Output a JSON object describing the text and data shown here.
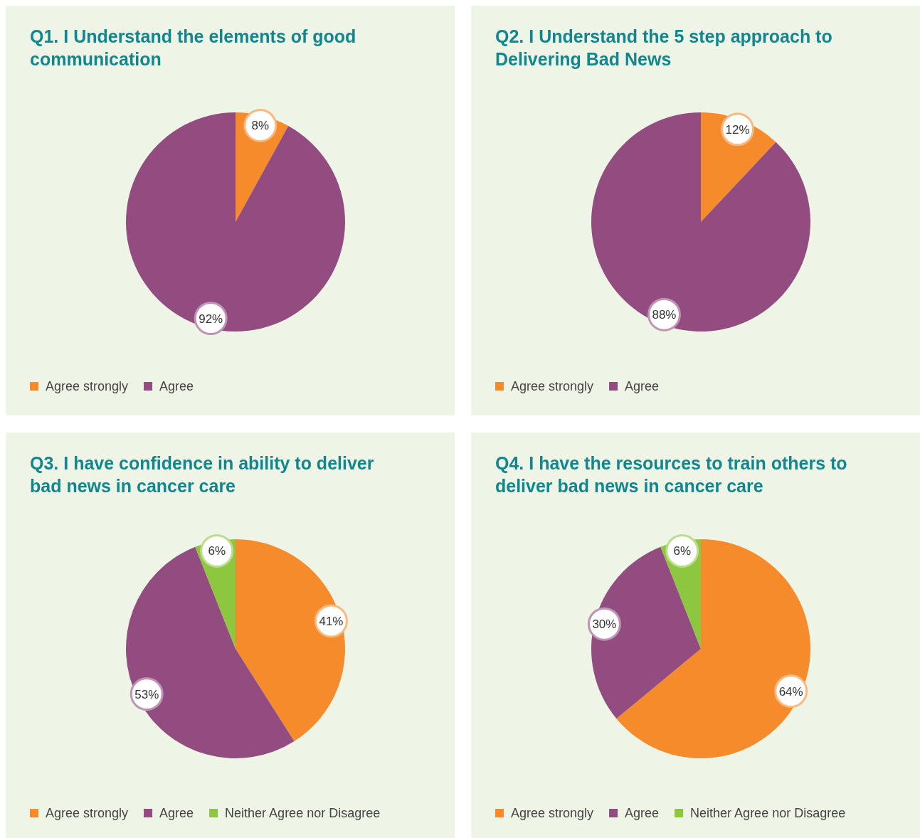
{
  "chart_data": [
    {
      "type": "pie",
      "title": "Q1. I Understand the elements of good communication",
      "categories": [
        "Agree strongly",
        "Agree"
      ],
      "values": [
        8,
        92
      ],
      "colors": [
        "#f58b2a",
        "#924c80"
      ],
      "value_labels": [
        "8%",
        "92%"
      ],
      "legend": "bottom left"
    },
    {
      "type": "pie",
      "title": "Q2. I Understand the 5 step approach to Delivering Bad News",
      "categories": [
        "Agree strongly",
        "Agree"
      ],
      "values": [
        12,
        88
      ],
      "colors": [
        "#f58b2a",
        "#924c80"
      ],
      "value_labels": [
        "12%",
        "88%"
      ],
      "legend": "bottom left"
    },
    {
      "type": "pie",
      "title": "Q3. I have confidence in ability to deliver bad news in cancer care",
      "categories": [
        "Agree strongly",
        "Agree",
        "Neither Agree nor Disagree"
      ],
      "values": [
        41,
        53,
        6
      ],
      "colors": [
        "#f58b2a",
        "#924c80",
        "#8dc63f"
      ],
      "value_labels": [
        "41%",
        "53%",
        "6%"
      ],
      "legend": "bottom left"
    },
    {
      "type": "pie",
      "title": "Q4. I have the resources to train others to deliver bad news in cancer care",
      "categories": [
        "Agree strongly",
        "Agree",
        "Neither Agree nor Disagree"
      ],
      "values": [
        64,
        30,
        6
      ],
      "colors": [
        "#f58b2a",
        "#924c80",
        "#8dc63f"
      ],
      "value_labels": [
        "64%",
        "30%",
        "6%"
      ],
      "legend": "bottom left"
    }
  ]
}
